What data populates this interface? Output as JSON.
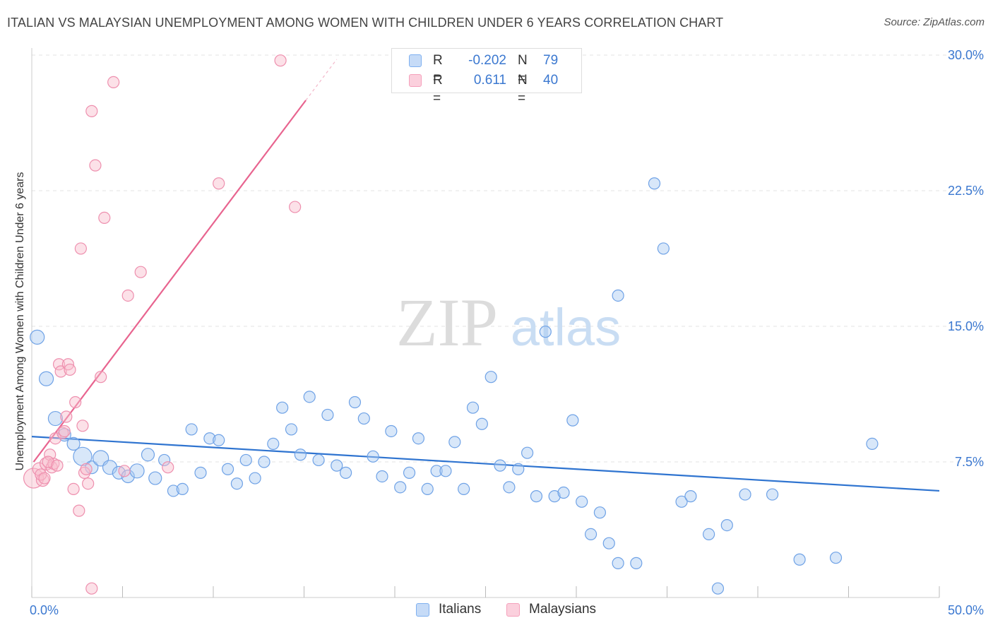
{
  "title": "ITALIAN VS MALAYSIAN UNEMPLOYMENT AMONG WOMEN WITH CHILDREN UNDER 6 YEARS CORRELATION CHART",
  "source": "Source: ZipAtlas.com",
  "watermark": {
    "zip": "ZIP",
    "atlas": "atlas"
  },
  "legend": {
    "rows": [
      {
        "r_label": "R =",
        "r_value": "-0.202",
        "n_label": "N =",
        "n_value": "79",
        "color": "#7fb0f0"
      },
      {
        "r_label": "R =",
        "r_value": "0.611",
        "n_label": "N =",
        "n_value": "40",
        "color": "#f5a0bb"
      }
    ]
  },
  "bottom_legend": {
    "italians": "Italians",
    "malaysians": "Malaysians"
  },
  "chart_data": {
    "type": "scatter",
    "title": "ITALIAN VS MALAYSIAN UNEMPLOYMENT AMONG WOMEN WITH CHILDREN UNDER 6 YEARS CORRELATION CHART",
    "xlabel": "",
    "ylabel": "Unemployment Among Women with Children Under 6 years",
    "xlim": [
      0,
      50
    ],
    "ylim": [
      0,
      30
    ],
    "x_tick_labels": [
      {
        "value": 0,
        "label": "0.0%"
      },
      {
        "value": 50,
        "label": "50.0%"
      }
    ],
    "y_tick_labels": [
      {
        "value": 7.5,
        "label": "7.5%"
      },
      {
        "value": 15,
        "label": "15.0%"
      },
      {
        "value": 22.5,
        "label": "22.5%"
      },
      {
        "value": 30,
        "label": "30.0%"
      }
    ],
    "grid": true,
    "legend_position": "top-center",
    "series": [
      {
        "name": "Italians",
        "color": "#7fb0f0",
        "line_color": "#2f74d0",
        "trend": {
          "x": [
            0,
            50
          ],
          "y": [
            8.9,
            5.9
          ]
        },
        "points": [
          [
            0.3,
            14.4,
            10
          ],
          [
            0.8,
            12.1,
            10
          ],
          [
            1.3,
            9.9,
            10
          ],
          [
            1.8,
            9.0,
            9
          ],
          [
            2.3,
            8.5,
            9
          ],
          [
            2.8,
            7.8,
            13
          ],
          [
            3.3,
            7.2,
            9
          ],
          [
            3.8,
            7.7,
            11
          ],
          [
            4.3,
            7.2,
            10
          ],
          [
            4.8,
            6.9,
            9
          ],
          [
            5.3,
            6.7,
            9
          ],
          [
            5.8,
            7.0,
            10
          ],
          [
            6.4,
            7.9,
            9
          ],
          [
            6.8,
            6.6,
            9
          ],
          [
            7.3,
            7.6,
            8
          ],
          [
            7.8,
            5.9,
            8
          ],
          [
            8.3,
            6.0,
            8
          ],
          [
            8.8,
            9.3,
            8
          ],
          [
            9.3,
            6.9,
            8
          ],
          [
            9.8,
            8.8,
            8
          ],
          [
            10.3,
            8.7,
            8
          ],
          [
            10.8,
            7.1,
            8
          ],
          [
            11.3,
            6.3,
            8
          ],
          [
            11.8,
            7.6,
            8
          ],
          [
            12.3,
            6.6,
            8
          ],
          [
            12.8,
            7.5,
            8
          ],
          [
            13.3,
            8.5,
            8
          ],
          [
            13.8,
            10.5,
            8
          ],
          [
            14.3,
            9.3,
            8
          ],
          [
            14.8,
            7.9,
            8
          ],
          [
            15.3,
            11.1,
            8
          ],
          [
            15.8,
            7.6,
            8
          ],
          [
            16.3,
            10.1,
            8
          ],
          [
            16.8,
            7.3,
            8
          ],
          [
            17.3,
            6.9,
            8
          ],
          [
            17.8,
            10.8,
            8
          ],
          [
            18.3,
            9.9,
            8
          ],
          [
            18.8,
            7.8,
            8
          ],
          [
            19.3,
            6.7,
            8
          ],
          [
            19.8,
            9.2,
            8
          ],
          [
            20.3,
            6.1,
            8
          ],
          [
            20.8,
            6.9,
            8
          ],
          [
            21.3,
            8.8,
            8
          ],
          [
            21.8,
            6.0,
            8
          ],
          [
            22.3,
            7.0,
            8
          ],
          [
            22.8,
            7.0,
            8
          ],
          [
            23.3,
            8.6,
            8
          ],
          [
            23.8,
            6.0,
            8
          ],
          [
            24.3,
            10.5,
            8
          ],
          [
            24.8,
            9.6,
            8
          ],
          [
            25.3,
            12.2,
            8
          ],
          [
            25.8,
            7.3,
            8
          ],
          [
            26.3,
            6.1,
            8
          ],
          [
            26.8,
            7.1,
            8
          ],
          [
            27.3,
            8.0,
            8
          ],
          [
            27.8,
            5.6,
            8
          ],
          [
            28.3,
            14.7,
            8
          ],
          [
            28.8,
            5.6,
            8
          ],
          [
            29.3,
            5.8,
            8
          ],
          [
            29.8,
            9.8,
            8
          ],
          [
            30.3,
            5.3,
            8
          ],
          [
            30.8,
            3.5,
            8
          ],
          [
            31.3,
            4.7,
            8
          ],
          [
            31.8,
            3.0,
            8
          ],
          [
            32.3,
            16.7,
            8
          ],
          [
            32.3,
            1.9,
            8
          ],
          [
            33.3,
            1.9,
            8
          ],
          [
            34.3,
            22.9,
            8
          ],
          [
            34.8,
            19.3,
            8
          ],
          [
            35.8,
            5.3,
            8
          ],
          [
            36.3,
            5.6,
            8
          ],
          [
            37.3,
            3.5,
            8
          ],
          [
            37.8,
            0.5,
            8
          ],
          [
            38.3,
            4.0,
            8
          ],
          [
            39.3,
            5.7,
            8
          ],
          [
            40.8,
            5.7,
            8
          ],
          [
            42.3,
            2.1,
            8
          ],
          [
            44.3,
            2.2,
            8
          ],
          [
            46.3,
            8.5,
            8
          ]
        ]
      },
      {
        "name": "Malaysians",
        "color": "#f5a0bb",
        "line_color": "#e8648f",
        "trend": {
          "x": [
            0.1,
            15.1
          ],
          "y": [
            7.5,
            27.5
          ]
        },
        "points": [
          [
            0.1,
            6.6,
            14
          ],
          [
            0.4,
            7.1,
            9
          ],
          [
            0.6,
            6.5,
            9
          ],
          [
            0.8,
            7.4,
            9
          ],
          [
            1.0,
            7.9,
            8
          ],
          [
            1.1,
            7.2,
            8
          ],
          [
            1.2,
            7.4,
            8
          ],
          [
            1.3,
            8.8,
            8
          ],
          [
            1.5,
            12.9,
            8
          ],
          [
            1.6,
            12.5,
            8
          ],
          [
            1.7,
            9.1,
            8
          ],
          [
            1.8,
            9.2,
            8
          ],
          [
            1.9,
            10.0,
            8
          ],
          [
            2.0,
            12.9,
            8
          ],
          [
            2.1,
            12.6,
            8
          ],
          [
            2.3,
            6.0,
            8
          ],
          [
            2.4,
            10.8,
            8
          ],
          [
            2.6,
            4.8,
            8
          ],
          [
            2.7,
            19.3,
            8
          ],
          [
            2.8,
            9.5,
            8
          ],
          [
            2.9,
            6.9,
            8
          ],
          [
            3.0,
            7.1,
            8
          ],
          [
            3.1,
            6.3,
            8
          ],
          [
            3.3,
            26.9,
            8
          ],
          [
            3.5,
            23.9,
            8
          ],
          [
            3.3,
            0.5,
            8
          ],
          [
            3.8,
            12.2,
            8
          ],
          [
            4.0,
            21.0,
            8
          ],
          [
            4.5,
            28.5,
            8
          ],
          [
            5.1,
            7.0,
            8
          ],
          [
            5.3,
            16.7,
            8
          ],
          [
            6.0,
            18.0,
            8
          ],
          [
            7.5,
            7.2,
            8
          ],
          [
            10.3,
            22.9,
            8
          ],
          [
            14.5,
            21.6,
            8
          ],
          [
            13.7,
            29.7,
            8
          ],
          [
            0.5,
            6.8,
            8
          ],
          [
            0.7,
            6.6,
            8
          ],
          [
            0.9,
            7.5,
            8
          ],
          [
            1.4,
            7.3,
            8
          ]
        ]
      }
    ]
  }
}
